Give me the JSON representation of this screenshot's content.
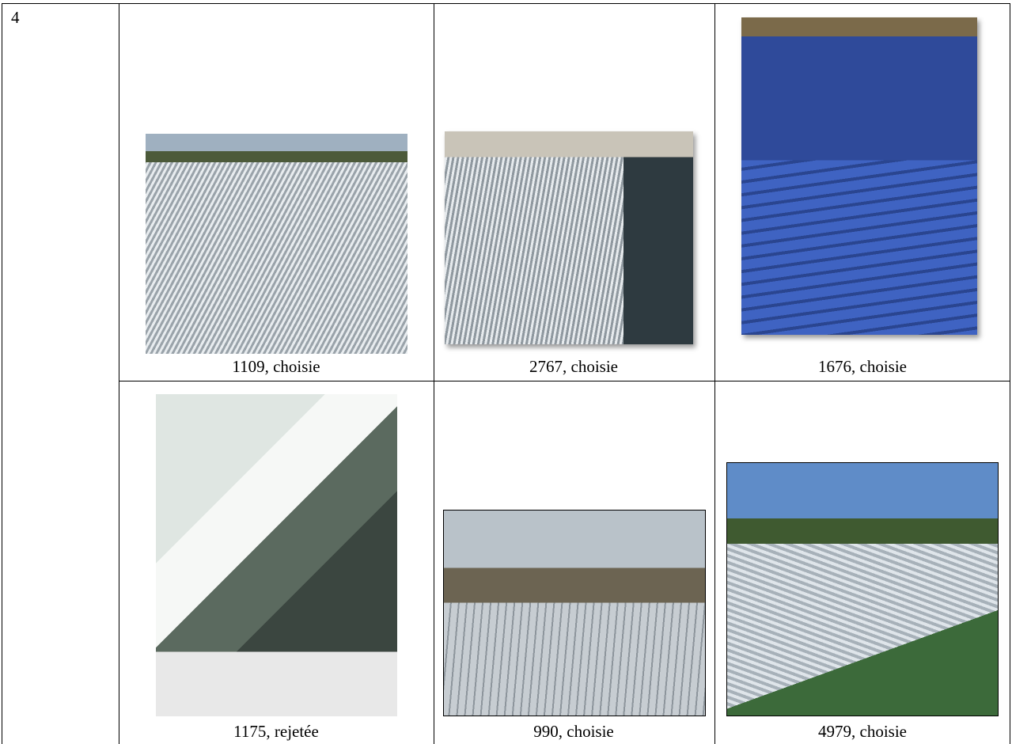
{
  "table": {
    "row_label": "4",
    "rows": [
      [
        {
          "caption": "1109, choisie"
        },
        {
          "caption": "2767, choisie"
        },
        {
          "caption": "1676, choisie"
        }
      ],
      [
        {
          "caption": "1175, rejetée"
        },
        {
          "caption": "990, choisie"
        },
        {
          "caption": "4979, choisie"
        }
      ]
    ]
  }
}
